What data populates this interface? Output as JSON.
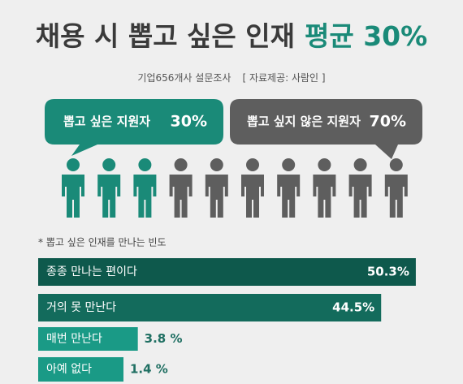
{
  "chart_data": [
    {
      "type": "pictogram",
      "title": "채용 시 뽑고 싶은 인재",
      "title_highlight": "평균 30%",
      "subtitle": "기업656개사 설문조사",
      "source": "[ 자료제공: 사람인 ]",
      "series": [
        {
          "name": "뽑고 싶은 지원자",
          "color": "#1a8a78",
          "values": [
            30
          ],
          "value_labels": [
            "30%"
          ]
        },
        {
          "name": "뽑고 싶지 않은 지원자",
          "color": "#5e5e5e",
          "values": [
            70
          ],
          "value_labels": [
            "70%"
          ]
        }
      ]
    },
    {
      "type": "bar",
      "title": "* 뽑고 싶은 인재를 만나는 빈도",
      "categories": [
        "종종 만나는 편이다",
        "거의 못 만난다",
        "매번 만난다",
        "아예 없다"
      ],
      "values": [
        50.3,
        44.5,
        3.8,
        1.4
      ],
      "value_labels": [
        "50.3%",
        "44.5%",
        "3.8 %",
        "1.4 %"
      ],
      "colors": [
        "#0e594c",
        "#136b5c",
        "#1a9a86",
        "#1a9a86"
      ]
    }
  ]
}
